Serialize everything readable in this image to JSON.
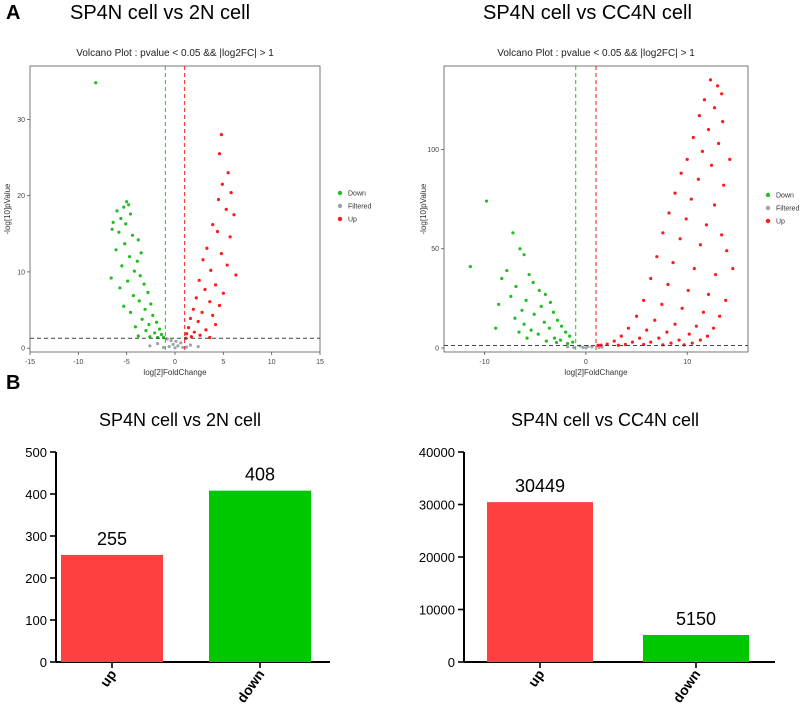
{
  "panels": {
    "a": "A",
    "b": "B"
  },
  "colors": {
    "down": "#1fbf1f",
    "filtered": "#9aa5a8",
    "up": "#ff1a1a",
    "bar_up": "#ff4040",
    "bar_down": "#00c800"
  },
  "chart_data": [
    {
      "type": "scatter",
      "heading": "SP4N cell vs 2N cell",
      "title": "Volcano Plot : pvalue < 0.05 && |log2FC| > 1",
      "xlabel": "log[2]FoldChange",
      "ylabel": "-log[10]pValue",
      "xlim": [
        -15,
        15
      ],
      "ylim": [
        -0.5,
        37
      ],
      "xticks": [
        -15,
        -10,
        -5,
        0,
        5,
        10,
        15
      ],
      "yticks": [
        0,
        10,
        20,
        30
      ],
      "thresholds": {
        "fc": [
          -1,
          1
        ],
        "p": 1.3
      },
      "legend": [
        "Down",
        "Filtered",
        "Up"
      ],
      "series": [
        {
          "name": "Down",
          "points": [
            [
              -8.2,
              34.8
            ],
            [
              -5,
              19.2
            ],
            [
              -4.8,
              18.8
            ],
            [
              -5.3,
              18.5
            ],
            [
              -6,
              18
            ],
            [
              -4.6,
              17.6
            ],
            [
              -5.6,
              17
            ],
            [
              -6.4,
              16.5
            ],
            [
              -5.1,
              16.3
            ],
            [
              -6.5,
              15.6
            ],
            [
              -5.8,
              15.2
            ],
            [
              -3.8,
              14.2
            ],
            [
              -4.4,
              14.8
            ],
            [
              -5.2,
              13.7
            ],
            [
              -3.5,
              12.5
            ],
            [
              -6.1,
              12.9
            ],
            [
              -4.7,
              12
            ],
            [
              -3.9,
              11.4
            ],
            [
              -5.5,
              10.8
            ],
            [
              -4.2,
              10.1
            ],
            [
              -3.6,
              9.5
            ],
            [
              -6.6,
              9.2
            ],
            [
              -4.9,
              8.8
            ],
            [
              -3.2,
              8.4
            ],
            [
              -5.7,
              7.9
            ],
            [
              -2.8,
              7.3
            ],
            [
              -4.3,
              6.9
            ],
            [
              -3.7,
              6.2
            ],
            [
              -2.5,
              5.8
            ],
            [
              -5.3,
              5.5
            ],
            [
              -3.1,
              5.1
            ],
            [
              -4.6,
              4.7
            ],
            [
              -2.3,
              4.3
            ],
            [
              -3.4,
              3.8
            ],
            [
              -1.9,
              3.4
            ],
            [
              -2.7,
              3.1
            ],
            [
              -4.1,
              2.8
            ],
            [
              -1.6,
              2.5
            ],
            [
              -3,
              2.3
            ],
            [
              -2.1,
              2
            ],
            [
              -1.4,
              1.8
            ],
            [
              -3.8,
              1.6
            ],
            [
              -2.6,
              1.5
            ],
            [
              -1.2,
              1.4
            ],
            [
              -1.8,
              1.4
            ]
          ]
        },
        {
          "name": "Filtered",
          "points": [
            [
              -0.8,
              1.2
            ],
            [
              -0.4,
              1
            ],
            [
              0.1,
              0.9
            ],
            [
              0.6,
              0.7
            ],
            [
              -0.2,
              0.5
            ],
            [
              0.3,
              0.3
            ],
            [
              -0.6,
              0.2
            ],
            [
              0.8,
              0.1
            ],
            [
              -1.8,
              0.6
            ],
            [
              1.6,
              0.4
            ],
            [
              -2.6,
              0.3
            ],
            [
              2.4,
              0.2
            ],
            [
              0,
              0.05
            ],
            [
              -1.2,
              0.1
            ],
            [
              1.2,
              0.15
            ]
          ]
        },
        {
          "name": "Up",
          "points": [
            [
              4.8,
              28
            ],
            [
              4.6,
              25.5
            ],
            [
              5.5,
              23
            ],
            [
              4.9,
              21.5
            ],
            [
              5.8,
              20.4
            ],
            [
              4.5,
              19.5
            ],
            [
              5.3,
              18.2
            ],
            [
              6.1,
              17.5
            ],
            [
              3.9,
              16.2
            ],
            [
              4.4,
              15.3
            ],
            [
              5.7,
              14.6
            ],
            [
              3.3,
              13.1
            ],
            [
              4.8,
              12.4
            ],
            [
              2.9,
              11.6
            ],
            [
              5.4,
              10.9
            ],
            [
              3.7,
              10.2
            ],
            [
              6.3,
              9.6
            ],
            [
              2.5,
              8.9
            ],
            [
              4.2,
              8.3
            ],
            [
              3.1,
              7.7
            ],
            [
              5,
              7.2
            ],
            [
              2.2,
              6.6
            ],
            [
              3.6,
              6.1
            ],
            [
              4.6,
              5.6
            ],
            [
              1.9,
              5.1
            ],
            [
              2.8,
              4.7
            ],
            [
              3.9,
              4.3
            ],
            [
              1.6,
              3.9
            ],
            [
              2.4,
              3.5
            ],
            [
              4.2,
              3.1
            ],
            [
              1.4,
              2.7
            ],
            [
              3.2,
              2.4
            ],
            [
              2,
              2.1
            ],
            [
              1.2,
              1.9
            ],
            [
              2.6,
              1.7
            ],
            [
              1.7,
              1.5
            ],
            [
              3.6,
              1.4
            ],
            [
              1.1,
              1.3
            ]
          ]
        }
      ]
    },
    {
      "type": "scatter",
      "heading": "SP4N cell vs CC4N cell",
      "title": "Volcano Plot : pvalue < 0.05 && |log2FC| > 1",
      "xlabel": "log[2]FoldChange",
      "ylabel": "-log[10]pValue",
      "xlim": [
        -14,
        16
      ],
      "ylim": [
        -2,
        142
      ],
      "xticks": [
        -10,
        0,
        10
      ],
      "yticks": [
        0,
        50,
        100
      ],
      "thresholds": {
        "fc": [
          -1,
          1
        ],
        "p": 1.3
      },
      "legend": [
        "Down",
        "Filtered",
        "Up"
      ],
      "series": [
        {
          "name": "Down",
          "points": [
            [
              -9.8,
              74
            ],
            [
              -7.2,
              58
            ],
            [
              -6.5,
              50
            ],
            [
              -6.1,
              47
            ],
            [
              -11.4,
              41
            ],
            [
              -7.8,
              39
            ],
            [
              -5.6,
              37
            ],
            [
              -8.3,
              35
            ],
            [
              -5.2,
              33
            ],
            [
              -6.9,
              31
            ],
            [
              -4.6,
              29
            ],
            [
              -4,
              27
            ],
            [
              -7.4,
              26
            ],
            [
              -5.9,
              24
            ],
            [
              -3.5,
              23
            ],
            [
              -8.6,
              22
            ],
            [
              -4.4,
              21
            ],
            [
              -6.3,
              19
            ],
            [
              -3.2,
              18
            ],
            [
              -5.1,
              17
            ],
            [
              -7,
              15
            ],
            [
              -2.8,
              14
            ],
            [
              -4.1,
              13
            ],
            [
              -6.1,
              12
            ],
            [
              -2.4,
              11
            ],
            [
              -3.6,
              10
            ],
            [
              -5.4,
              9
            ],
            [
              -2,
              8
            ],
            [
              -4.7,
              7
            ],
            [
              -1.6,
              6
            ],
            [
              -3.1,
              5
            ],
            [
              -2.5,
              4
            ],
            [
              -6.6,
              8
            ],
            [
              -1.3,
              3
            ],
            [
              -3.9,
              3.5
            ],
            [
              -1.8,
              2.2
            ],
            [
              -5.8,
              5
            ],
            [
              -2.9,
              2.8
            ],
            [
              -8.9,
              10
            ]
          ]
        },
        {
          "name": "Filtered",
          "points": [
            [
              -0.6,
              1
            ],
            [
              0.2,
              0.8
            ],
            [
              0.6,
              0.5
            ],
            [
              -0.3,
              0.3
            ],
            [
              -1.8,
              0.6
            ],
            [
              1.6,
              0.5
            ],
            [
              0,
              0.1
            ],
            [
              -1.2,
              0.2
            ],
            [
              1.3,
              0.3
            ]
          ]
        },
        {
          "name": "Up",
          "points": [
            [
              12.3,
              135
            ],
            [
              13,
              132
            ],
            [
              13.4,
              128
            ],
            [
              11.7,
              125
            ],
            [
              12.7,
              121
            ],
            [
              11.2,
              117
            ],
            [
              13.5,
              114
            ],
            [
              12.1,
              110
            ],
            [
              10.6,
              106
            ],
            [
              13.1,
              103
            ],
            [
              11.5,
              99
            ],
            [
              10,
              95
            ],
            [
              12.4,
              92
            ],
            [
              9.4,
              88
            ],
            [
              11.1,
              85
            ],
            [
              13.6,
              82
            ],
            [
              8.8,
              78
            ],
            [
              10.4,
              75
            ],
            [
              12.7,
              72
            ],
            [
              8.2,
              68
            ],
            [
              9.9,
              65
            ],
            [
              11.9,
              62
            ],
            [
              7.6,
              58
            ],
            [
              9.3,
              55
            ],
            [
              11.3,
              52
            ],
            [
              13.9,
              49
            ],
            [
              7,
              46
            ],
            [
              8.6,
              43
            ],
            [
              10.7,
              40
            ],
            [
              12.8,
              37
            ],
            [
              6.4,
              35
            ],
            [
              8.1,
              32
            ],
            [
              10.1,
              29
            ],
            [
              12.1,
              27
            ],
            [
              13.8,
              24
            ],
            [
              5.7,
              24
            ],
            [
              7.5,
              22
            ],
            [
              9.5,
              20
            ],
            [
              11.6,
              18
            ],
            [
              13.2,
              16
            ],
            [
              5,
              16
            ],
            [
              6.8,
              14
            ],
            [
              8.8,
              12
            ],
            [
              10.9,
              11
            ],
            [
              12.6,
              10
            ],
            [
              4.2,
              10
            ],
            [
              6,
              9
            ],
            [
              8,
              8
            ],
            [
              10.2,
              7
            ],
            [
              12,
              6
            ],
            [
              3.5,
              6
            ],
            [
              5.3,
              5
            ],
            [
              7.2,
              5
            ],
            [
              9.2,
              4
            ],
            [
              11.3,
              4
            ],
            [
              2.8,
              3.5
            ],
            [
              4.6,
              3
            ],
            [
              6.4,
              3
            ],
            [
              8.4,
              2.5
            ],
            [
              10.5,
              2.5
            ],
            [
              2.1,
              2
            ],
            [
              3.9,
              1.8
            ],
            [
              5.7,
              1.8
            ],
            [
              1.5,
              1.5
            ],
            [
              7.6,
              1.6
            ],
            [
              9.7,
              1.6
            ],
            [
              3.2,
              1.4
            ],
            [
              1.2,
              1.4
            ],
            [
              14.2,
              95
            ],
            [
              14.5,
              40
            ],
            [
              13.4,
              57
            ]
          ]
        }
      ]
    },
    {
      "type": "bar",
      "heading": "SP4N cell vs 2N cell",
      "categories": [
        "up",
        "down"
      ],
      "values": [
        255,
        408
      ],
      "value_labels": [
        "255",
        "408"
      ],
      "ylim": [
        0,
        500
      ],
      "yticks": [
        0,
        100,
        200,
        300,
        400,
        500
      ]
    },
    {
      "type": "bar",
      "heading": "SP4N cell vs CC4N cell",
      "categories": [
        "up",
        "down"
      ],
      "values": [
        30449,
        5150
      ],
      "value_labels": [
        "30449",
        "5150"
      ],
      "ylim": [
        0,
        40000
      ],
      "yticks": [
        0,
        10000,
        20000,
        30000,
        40000
      ]
    }
  ]
}
